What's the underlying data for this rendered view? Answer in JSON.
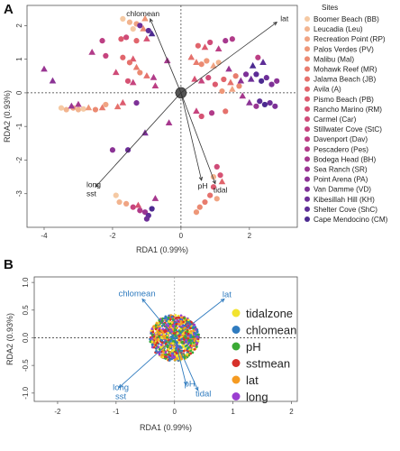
{
  "panelA": {
    "letter": "A",
    "chart_data": {
      "type": "scatter",
      "xlabel": "RDA1 (0.99%)",
      "ylabel": "RDA2 (0.93%)",
      "xlim": [
        -4.5,
        3.4
      ],
      "ylim": [
        -4.0,
        2.6
      ],
      "xticks": [
        -4,
        -2,
        0,
        2
      ],
      "yticks": [
        -3,
        -2,
        -1,
        0,
        1,
        2
      ],
      "legend_title": "Sites",
      "legend_position": "right",
      "grid": false,
      "sites": [
        {
          "name": "Boomer Beach (BB)",
          "color": "#f5c9a3"
        },
        {
          "name": "Leucadia (Leu)",
          "color": "#f2b48f"
        },
        {
          "name": "Recreation Point (RP)",
          "color": "#f0a483"
        },
        {
          "name": "Palos Verdes (PV)",
          "color": "#ee9778"
        },
        {
          "name": "Malibu (Mal)",
          "color": "#eb8a72"
        },
        {
          "name": "Mohawk Reef (MR)",
          "color": "#e87c6e"
        },
        {
          "name": "Jalama Beach (JB)",
          "color": "#e5716c"
        },
        {
          "name": "Avila (A)",
          "color": "#e1656c"
        },
        {
          "name": "Pismo Beach (PB)",
          "color": "#dc5b6f"
        },
        {
          "name": "Rancho Marino (RM)",
          "color": "#d65273"
        },
        {
          "name": "Carmel (Car)",
          "color": "#cf4b78"
        },
        {
          "name": "Stillwater Cove (StC)",
          "color": "#c6447e"
        },
        {
          "name": "Davenport (Dav)",
          "color": "#bc3f84"
        },
        {
          "name": "Pescadero (Pes)",
          "color": "#b13b89"
        },
        {
          "name": "Bodega Head (BH)",
          "color": "#a6388e"
        },
        {
          "name": "Sea Ranch (SR)",
          "color": "#993592"
        },
        {
          "name": "Point Arena (PA)",
          "color": "#8b3395"
        },
        {
          "name": "Van Damme (VD)",
          "color": "#7d3197"
        },
        {
          "name": "Kibesillah Hill (KH)",
          "color": "#6d2f98"
        },
        {
          "name": "Shelter Cove (ShC)",
          "color": "#5d2d96"
        },
        {
          "name": "Cape Mendocino (CM)",
          "color": "#4c2a90"
        }
      ],
      "arrows": [
        {
          "label": "chlomean",
          "x": -0.9,
          "y": 2.2
        },
        {
          "label": "lat",
          "x": 2.8,
          "y": 2.1
        },
        {
          "label": "long",
          "x": -2.5,
          "y": -2.8
        },
        {
          "label": "sst",
          "x": -2.5,
          "y": -2.8
        },
        {
          "label": "pH",
          "x": 0.6,
          "y": -2.6
        },
        {
          "label": "tidal",
          "x": 1.0,
          "y": -2.7
        }
      ],
      "points": [
        {
          "x": -1.7,
          "y": 2.2,
          "s": 0,
          "m": "o"
        },
        {
          "x": -1.5,
          "y": 2.1,
          "s": 1,
          "m": "o"
        },
        {
          "x": -1.3,
          "y": 2.05,
          "s": 2,
          "m": "o"
        },
        {
          "x": -1.05,
          "y": 2.2,
          "s": 3,
          "m": "^"
        },
        {
          "x": -1.4,
          "y": 1.9,
          "s": 0,
          "m": "o"
        },
        {
          "x": -1.1,
          "y": 1.9,
          "s": 4,
          "m": "^"
        },
        {
          "x": -0.95,
          "y": 1.85,
          "s": 19,
          "m": "o"
        },
        {
          "x": -0.85,
          "y": 1.75,
          "s": 20,
          "m": "^"
        },
        {
          "x": -1.2,
          "y": 2.0,
          "s": 18,
          "m": "o"
        },
        {
          "x": -1.6,
          "y": 1.65,
          "s": 10,
          "m": "o"
        },
        {
          "x": -1.75,
          "y": 1.6,
          "s": 8,
          "m": "o"
        },
        {
          "x": -1.3,
          "y": 1.55,
          "s": 7,
          "m": "o"
        },
        {
          "x": -1.0,
          "y": 1.6,
          "s": 9,
          "m": "^"
        },
        {
          "x": -2.3,
          "y": 1.55,
          "s": 12,
          "m": "o"
        },
        {
          "x": -2.6,
          "y": 1.2,
          "s": 13,
          "m": "^"
        },
        {
          "x": -2.2,
          "y": 1.1,
          "s": 11,
          "m": "o"
        },
        {
          "x": -1.7,
          "y": 1.05,
          "s": 7,
          "m": "o"
        },
        {
          "x": -1.4,
          "y": 1.0,
          "s": 8,
          "m": "^"
        },
        {
          "x": -1.5,
          "y": 0.9,
          "s": 6,
          "m": "o"
        },
        {
          "x": -1.3,
          "y": 0.75,
          "s": 5,
          "m": "^"
        },
        {
          "x": -1.2,
          "y": 0.6,
          "s": 4,
          "m": "o"
        },
        {
          "x": -1.0,
          "y": 0.5,
          "s": 6,
          "m": "^"
        },
        {
          "x": -1.55,
          "y": 0.35,
          "s": 9,
          "m": "o"
        },
        {
          "x": -1.9,
          "y": 0.6,
          "s": 10,
          "m": "^"
        },
        {
          "x": -0.8,
          "y": 0.45,
          "s": 13,
          "m": "^"
        },
        {
          "x": -0.75,
          "y": 0.2,
          "s": 12,
          "m": "^"
        },
        {
          "x": -1.4,
          "y": 0.3,
          "s": 11,
          "m": "^"
        },
        {
          "x": -0.4,
          "y": 0.95,
          "s": 14,
          "m": "^"
        },
        {
          "x": -4.0,
          "y": 0.7,
          "s": 15,
          "m": "^"
        },
        {
          "x": -3.75,
          "y": 0.35,
          "s": 16,
          "m": "^"
        },
        {
          "x": -3.5,
          "y": -0.45,
          "s": 0,
          "m": "o"
        },
        {
          "x": -3.35,
          "y": -0.5,
          "s": 1,
          "m": "o"
        },
        {
          "x": -3.15,
          "y": -0.45,
          "s": 2,
          "m": "o"
        },
        {
          "x": -3.0,
          "y": -0.5,
          "s": 1,
          "m": "o"
        },
        {
          "x": -2.85,
          "y": -0.48,
          "s": 0,
          "m": "o"
        },
        {
          "x": -2.7,
          "y": -0.45,
          "s": 3,
          "m": "^"
        },
        {
          "x": -2.5,
          "y": -0.5,
          "s": 4,
          "m": "o"
        },
        {
          "x": -2.3,
          "y": -0.45,
          "s": 5,
          "m": "^"
        },
        {
          "x": -2.2,
          "y": -0.35,
          "s": 2,
          "m": "o"
        },
        {
          "x": -1.85,
          "y": -0.42,
          "s": 6,
          "m": "^"
        },
        {
          "x": -1.7,
          "y": -0.3,
          "s": 8,
          "m": "^"
        },
        {
          "x": -1.3,
          "y": -0.3,
          "s": 17,
          "m": "o"
        },
        {
          "x": -3.2,
          "y": -0.4,
          "s": 15,
          "m": "^"
        },
        {
          "x": -3.0,
          "y": -0.35,
          "s": 14,
          "m": "^"
        },
        {
          "x": -2.0,
          "y": -1.7,
          "s": 16,
          "m": "o"
        },
        {
          "x": -1.55,
          "y": -1.7,
          "s": 18,
          "m": "o"
        },
        {
          "x": -1.05,
          "y": -1.2,
          "s": 17,
          "m": "^"
        },
        {
          "x": -0.75,
          "y": -3.15,
          "s": 14,
          "m": "^"
        },
        {
          "x": -1.9,
          "y": -3.05,
          "s": 0,
          "m": "o"
        },
        {
          "x": -1.8,
          "y": -3.25,
          "s": 1,
          "m": "o"
        },
        {
          "x": -1.6,
          "y": -3.3,
          "s": 2,
          "m": "o"
        },
        {
          "x": -1.4,
          "y": -3.4,
          "s": 11,
          "m": "o"
        },
        {
          "x": -1.2,
          "y": -3.5,
          "s": 13,
          "m": "o"
        },
        {
          "x": -1.05,
          "y": -3.55,
          "s": 15,
          "m": "o"
        },
        {
          "x": -0.95,
          "y": -3.65,
          "s": 19,
          "m": "o"
        },
        {
          "x": -0.85,
          "y": -3.45,
          "s": 20,
          "m": "o"
        },
        {
          "x": -1.0,
          "y": -3.75,
          "s": 18,
          "m": "o"
        },
        {
          "x": -1.25,
          "y": -3.35,
          "s": 9,
          "m": "^"
        },
        {
          "x": 0.3,
          "y": 1.05,
          "s": 6,
          "m": "^"
        },
        {
          "x": 0.45,
          "y": 0.9,
          "s": 5,
          "m": "^"
        },
        {
          "x": 0.6,
          "y": 0.85,
          "s": 4,
          "m": "o"
        },
        {
          "x": 0.75,
          "y": 0.95,
          "s": 3,
          "m": "o"
        },
        {
          "x": 0.95,
          "y": 0.8,
          "s": 2,
          "m": "^"
        },
        {
          "x": 1.1,
          "y": 0.9,
          "s": 1,
          "m": "o"
        },
        {
          "x": 0.7,
          "y": 1.35,
          "s": 8,
          "m": "^"
        },
        {
          "x": 0.5,
          "y": 1.4,
          "s": 7,
          "m": "o"
        },
        {
          "x": 0.85,
          "y": 1.5,
          "s": 10,
          "m": "o"
        },
        {
          "x": 1.1,
          "y": 1.3,
          "s": 12,
          "m": "^"
        },
        {
          "x": 1.3,
          "y": 1.55,
          "s": 14,
          "m": "o"
        },
        {
          "x": 1.5,
          "y": 1.6,
          "s": 13,
          "m": "o"
        },
        {
          "x": 0.4,
          "y": 0.4,
          "s": 9,
          "m": "^"
        },
        {
          "x": 0.6,
          "y": 0.35,
          "s": 11,
          "m": "^"
        },
        {
          "x": 0.8,
          "y": 0.45,
          "s": 10,
          "m": "o"
        },
        {
          "x": 1.0,
          "y": 0.25,
          "s": 8,
          "m": "o"
        },
        {
          "x": 1.25,
          "y": 0.4,
          "s": 7,
          "m": "o"
        },
        {
          "x": 1.45,
          "y": 0.3,
          "s": 6,
          "m": "^"
        },
        {
          "x": 1.6,
          "y": 0.5,
          "s": 5,
          "m": "o"
        },
        {
          "x": 1.75,
          "y": 0.35,
          "s": 16,
          "m": "^"
        },
        {
          "x": 1.4,
          "y": 0.7,
          "s": 15,
          "m": "^"
        },
        {
          "x": 1.2,
          "y": 0.05,
          "s": 3,
          "m": "o"
        },
        {
          "x": 1.5,
          "y": 0.1,
          "s": 2,
          "m": "^"
        },
        {
          "x": 1.7,
          "y": 0.2,
          "s": 4,
          "m": "o"
        },
        {
          "x": 1.9,
          "y": 0.55,
          "s": 17,
          "m": "o"
        },
        {
          "x": 2.05,
          "y": 0.4,
          "s": 18,
          "m": "^"
        },
        {
          "x": 2.2,
          "y": 0.55,
          "s": 19,
          "m": "o"
        },
        {
          "x": 2.35,
          "y": 0.35,
          "s": 20,
          "m": "o"
        },
        {
          "x": 2.5,
          "y": 0.45,
          "s": 18,
          "m": "o"
        },
        {
          "x": 2.65,
          "y": 0.25,
          "s": 17,
          "m": "o"
        },
        {
          "x": 2.8,
          "y": 0.35,
          "s": 16,
          "m": "o"
        },
        {
          "x": 2.3,
          "y": -0.25,
          "s": 19,
          "m": "o"
        },
        {
          "x": 2.45,
          "y": -0.35,
          "s": 20,
          "m": "o"
        },
        {
          "x": 2.6,
          "y": -0.3,
          "s": 18,
          "m": "o"
        },
        {
          "x": 2.75,
          "y": -0.4,
          "s": 17,
          "m": "o"
        },
        {
          "x": 2.2,
          "y": -0.4,
          "s": 15,
          "m": "o"
        },
        {
          "x": 2.0,
          "y": -0.3,
          "s": 16,
          "m": "^"
        },
        {
          "x": 1.8,
          "y": -0.1,
          "s": 14,
          "m": "^"
        },
        {
          "x": 2.1,
          "y": 0.8,
          "s": 20,
          "m": "^"
        },
        {
          "x": 2.4,
          "y": 0.9,
          "s": 19,
          "m": "^"
        },
        {
          "x": 2.25,
          "y": 1.05,
          "s": 12,
          "m": "o"
        },
        {
          "x": 0.6,
          "y": -0.7,
          "s": 9,
          "m": "o"
        },
        {
          "x": 0.45,
          "y": -0.55,
          "s": 11,
          "m": "^"
        },
        {
          "x": 0.9,
          "y": -0.6,
          "s": 13,
          "m": "o"
        },
        {
          "x": 1.3,
          "y": -0.55,
          "s": 6,
          "m": "o"
        },
        {
          "x": -0.35,
          "y": -0.9,
          "s": 14,
          "m": "^"
        },
        {
          "x": 1.05,
          "y": -2.2,
          "s": 10,
          "m": "o"
        },
        {
          "x": 1.15,
          "y": -2.45,
          "s": 9,
          "m": "o"
        },
        {
          "x": 0.95,
          "y": -2.8,
          "s": 8,
          "m": "o"
        },
        {
          "x": 1.2,
          "y": -2.65,
          "s": 7,
          "m": "^"
        },
        {
          "x": 0.85,
          "y": -3.05,
          "s": 6,
          "m": "o"
        },
        {
          "x": 0.7,
          "y": -3.25,
          "s": 5,
          "m": "o"
        },
        {
          "x": 0.55,
          "y": -3.4,
          "s": 4,
          "m": "o"
        },
        {
          "x": 0.45,
          "y": -3.55,
          "s": 3,
          "m": "o"
        },
        {
          "x": 1.05,
          "y": -3.15,
          "s": 2,
          "m": "o"
        },
        {
          "x": 0.95,
          "y": -2.5,
          "s": 1,
          "m": "o"
        }
      ],
      "centroid": {
        "x": 0.0,
        "y": 0.0
      }
    }
  },
  "panelB": {
    "letter": "B",
    "chart_data": {
      "type": "scatter",
      "xlabel": "RDA1 (0.99%)",
      "ylabel": "RDA2 (0.93%)",
      "xlim": [
        -2.4,
        2.1
      ],
      "ylim": [
        -1.15,
        1.1
      ],
      "xticks": [
        -2,
        -1,
        0,
        1,
        2
      ],
      "yticks": [
        -1.0,
        -0.5,
        0.0,
        0.5,
        1.0
      ],
      "ytick_labels": [
        "-1.0",
        "-0.5",
        "0.0",
        "0.5",
        "1.0"
      ],
      "legend_position": "right",
      "grid": false,
      "cloud": {
        "center_x": 0.0,
        "center_y": 0.0,
        "radius_x": 0.42,
        "radius_y": 0.42,
        "colors": [
          "#f2e32e",
          "#2f7bbf",
          "#3aaa35",
          "#d7312b",
          "#f59b22",
          "#9b3fd1"
        ]
      },
      "legend": [
        {
          "label": "tidalzone",
          "color": "#f2e32e"
        },
        {
          "label": "chlomean",
          "color": "#2f7bbf"
        },
        {
          "label": "pH",
          "color": "#3aaa35"
        },
        {
          "label": "sstmean",
          "color": "#d7312b"
        },
        {
          "label": "lat",
          "color": "#f59b22"
        },
        {
          "label": "long",
          "color": "#9b3fd1"
        }
      ],
      "arrows": [
        {
          "label": "chlomean",
          "x": -0.55,
          "y": 0.7
        },
        {
          "label": "lat",
          "x": 0.85,
          "y": 0.7
        },
        {
          "label": "long",
          "x": -0.95,
          "y": -0.9
        },
        {
          "label": "sst",
          "x": -0.95,
          "y": -0.95
        },
        {
          "label": "pH",
          "x": 0.2,
          "y": -0.85
        },
        {
          "label": "tidal",
          "x": 0.4,
          "y": -0.95
        }
      ]
    }
  }
}
